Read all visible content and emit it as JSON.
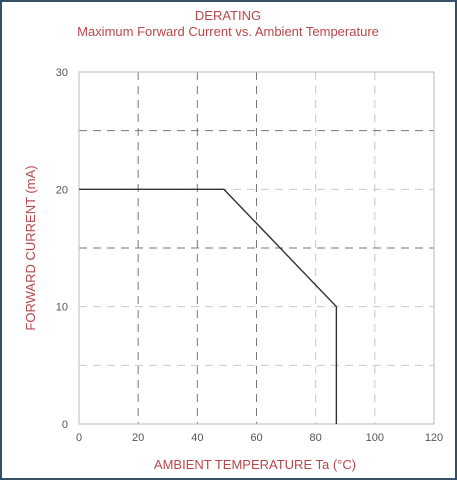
{
  "chart_data": {
    "type": "line",
    "title": "DERATING",
    "subtitle": "Maximum Forward Current vs. Ambient Temperature",
    "xlabel": "AMBIENT TEMPERATURE Ta (°C)",
    "ylabel": "FORWARD CURRENT (mA)",
    "xlim": [
      0,
      120
    ],
    "ylim": [
      0,
      30
    ],
    "x_ticks": [
      0,
      20,
      40,
      60,
      80,
      100,
      120
    ],
    "y_ticks": [
      0,
      10,
      20,
      30
    ],
    "grid": true,
    "series": [
      {
        "x": [
          0,
          49,
          87,
          87
        ],
        "y": [
          20,
          20,
          10,
          0
        ]
      }
    ],
    "colors": {
      "text": "#b5484a",
      "line": "#333333",
      "grid_major": "#777777",
      "grid_minor": "#c8c8c8",
      "border": "#37506a"
    }
  }
}
